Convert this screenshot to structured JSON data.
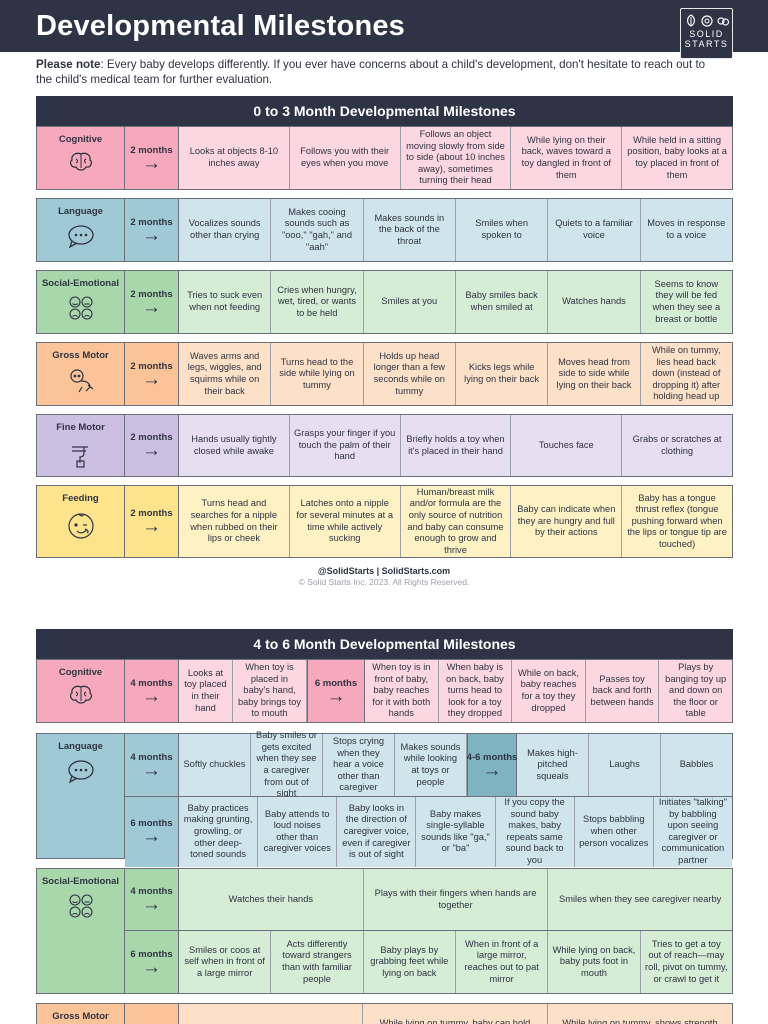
{
  "header": {
    "title": "Developmental Milestones",
    "logo_line1": "SOLID",
    "logo_line2": "STARTS"
  },
  "note": {
    "label": "Please note",
    "text": ": Every baby develops differently. If you ever have concerns about a child's development, don't hesitate to reach out to the child's medical team for further evaluation."
  },
  "colors": {
    "header": "#2e3446",
    "pink": "#f6a8bd",
    "blue": "#9ec9d5",
    "green": "#a9d7ac",
    "orange": "#fbc398",
    "purple": "#cdbfe1",
    "yellow": "#fde38c"
  },
  "section1": {
    "title": "0 to 3 Month Developmental Milestones",
    "rows": [
      {
        "category": "Cognitive",
        "icon": "brain-icon",
        "age": "2 months",
        "cells": [
          "Looks at objects 8-10 inches away",
          "Follows you with their eyes when you move",
          "Follows an object moving slowly from side to side (about 10 inches away), sometimes turning their head",
          "While lying on their back, waves toward a toy dangled in front of them",
          "While held in a sitting position, baby looks at a toy placed in front of them"
        ]
      },
      {
        "category": "Language",
        "icon": "speech-bubble-icon",
        "age": "2 months",
        "cells": [
          "Vocalizes sounds other than crying",
          "Makes cooing sounds such as \"ooo,\" \"gah,\" and \"aah\"",
          "Makes sounds in the back of the throat",
          "Smiles when spoken to",
          "Quiets to a familiar voice",
          "Moves in response to a voice"
        ]
      },
      {
        "category": "Social-Emotional",
        "icon": "emotion-faces-icon",
        "age": "2 months",
        "cells": [
          "Tries to suck even when not feeding",
          "Cries when hungry, wet, tired, or wants to be held",
          "Smiles at you",
          "Baby smiles back when smiled at",
          "Watches hands",
          "Seems to know they will be fed when they see a breast or bottle"
        ]
      },
      {
        "category": "Gross Motor",
        "icon": "crawling-baby-icon",
        "age": "2 months",
        "cells": [
          "Waves arms and legs, wiggles, and squirms while on their back",
          "Turns head to the side while lying on tummy",
          "Holds up head longer than a few seconds while on tummy",
          "Kicks legs while lying on their back",
          "Moves head from side to side while lying on their back",
          "While on tummy, lies head back down (instead of dropping it) after holding head up"
        ]
      },
      {
        "category": "Fine Motor",
        "icon": "hand-grasp-icon",
        "age": "2 months",
        "cells": [
          "Hands usually tightly closed while awake",
          "Grasps your finger if you touch the palm of their hand",
          "Briefly holds a toy when it's placed in their hand",
          "Touches face",
          "Grabs or scratches at clothing"
        ]
      },
      {
        "category": "Feeding",
        "icon": "baby-face-icon",
        "age": "2 months",
        "cells": [
          "Turns head and searches for a nipple when rubbed on their lips or cheek",
          "Latches onto a nipple for several minutes at a time while actively sucking",
          "Human/breast milk and/or formula are the only source of nutrition and baby can consume enough to grow and thrive",
          "Baby can indicate when they are hungry and full by their actions",
          "Baby has a tongue thrust reflex (tongue pushing forward when the lips or tongue tip are touched)"
        ]
      }
    ]
  },
  "footer": {
    "social": "@SolidStarts  |  SolidStarts.com",
    "copyright": "© Solid Starts Inc. 2023. All Rights Reserved."
  },
  "section2": {
    "title": "4 to 6 Month Developmental Milestones",
    "cognitive": {
      "category": "Cognitive",
      "age_a": "4 months",
      "cells_a": [
        "Looks at toy placed in their hand",
        "When toy is placed in baby's hand, baby brings toy to mouth"
      ],
      "age_b": "6 months",
      "cells_b": [
        "When toy is in front of baby, baby reaches for it with both hands",
        "When baby is on back, baby turns head to look for a toy they dropped",
        "While on back, baby reaches for a toy they dropped",
        "Passes toy back and forth between hands",
        "Plays by banging toy up and down on the floor or table"
      ]
    },
    "language": {
      "category": "Language",
      "age_a": "4 months",
      "cells_a": [
        "Softly chuckles",
        "Baby smiles or gets excited when they see a caregiver from out of sight",
        "Stops crying when they hear a voice other than caregiver",
        "Makes sounds while looking at toys or people"
      ],
      "age_b": "4-6 months",
      "cells_b": [
        "Makes high-pitched squeals",
        "Laughs",
        "Babbles"
      ],
      "age_c": "6 months",
      "cells_c": [
        "Baby practices making grunting, growling, or other deep-toned sounds",
        "Baby attends to loud noises other than caregiver voices",
        "Baby looks in the direction of caregiver voice, even if caregiver is out of sight",
        "Baby makes single-syllable sounds like \"ga,\" or \"ba\"",
        "If you copy the sound baby makes, baby repeats same sound back to you",
        "Stops babbling when other person vocalizes",
        "Initiates \"talking\" by babbling upon seeing caregiver or communication partner"
      ]
    },
    "social": {
      "category": "Social-Emotional",
      "age_a": "4 months",
      "cells_a": [
        "Watches their hands",
        "Plays with their fingers when hands are together",
        "Smiles when they see caregiver nearby"
      ],
      "age_b": "6 months",
      "cells_b": [
        "Smiles or coos at self when in front of a large mirror",
        "Acts differently toward strangers than with familiar people",
        "Baby plays by grabbing feet while lying on back",
        "When in front of a large mirror, reaches out to pat mirror",
        "While lying on back, baby puts foot in mouth",
        "Tries to get a toy out of reach—may roll, pivot on tummy, or crawl to get it"
      ]
    },
    "gross": {
      "category": "Gross Motor",
      "cells": [
        "While lying on tummy, baby can hold",
        "While lying on tummy, shows strength"
      ]
    }
  }
}
